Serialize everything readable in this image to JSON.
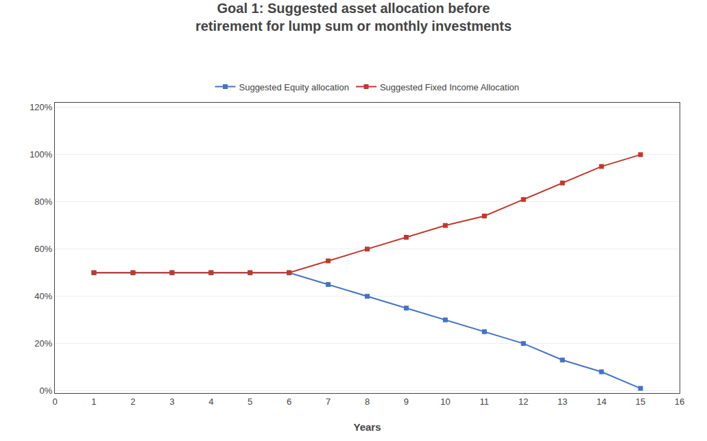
{
  "chart_data": {
    "type": "line",
    "title": "Goal 1: Suggested asset allocation before\nretirement for lump sum or monthly investments",
    "xlabel": "Years",
    "x": [
      1,
      2,
      3,
      4,
      5,
      6,
      7,
      8,
      9,
      10,
      11,
      12,
      13,
      14,
      15
    ],
    "series": [
      {
        "name": "Suggested Equity allocation",
        "color": "#4472C4",
        "marker": "square",
        "values": [
          0.5,
          0.5,
          0.5,
          0.5,
          0.5,
          0.5,
          0.45,
          0.4,
          0.35,
          0.3,
          0.25,
          0.2,
          0.13,
          0.08,
          0.01
        ]
      },
      {
        "name": "Suggested Fixed Income Allocation",
        "color": "#C0392B",
        "marker": "square",
        "values": [
          0.5,
          0.5,
          0.5,
          0.5,
          0.5,
          0.5,
          0.55,
          0.6,
          0.65,
          0.7,
          0.74,
          0.81,
          0.88,
          0.95,
          1.0
        ]
      }
    ],
    "xlim": [
      0,
      16
    ],
    "xticks": [
      0,
      1,
      2,
      3,
      4,
      5,
      6,
      7,
      8,
      9,
      10,
      11,
      12,
      13,
      14,
      15,
      16
    ],
    "ylim": [
      -0.01,
      1.22
    ],
    "yticks": [
      {
        "value": 0.0,
        "label": "0%"
      },
      {
        "value": 0.2,
        "label": "20%"
      },
      {
        "value": 0.4,
        "label": "40%"
      },
      {
        "value": 0.6,
        "label": "60%"
      },
      {
        "value": 0.8,
        "label": "80%"
      },
      {
        "value": 1.0,
        "label": "100%"
      },
      {
        "value": 1.2,
        "label": "120%"
      }
    ],
    "grid": "y",
    "legend": "top"
  }
}
